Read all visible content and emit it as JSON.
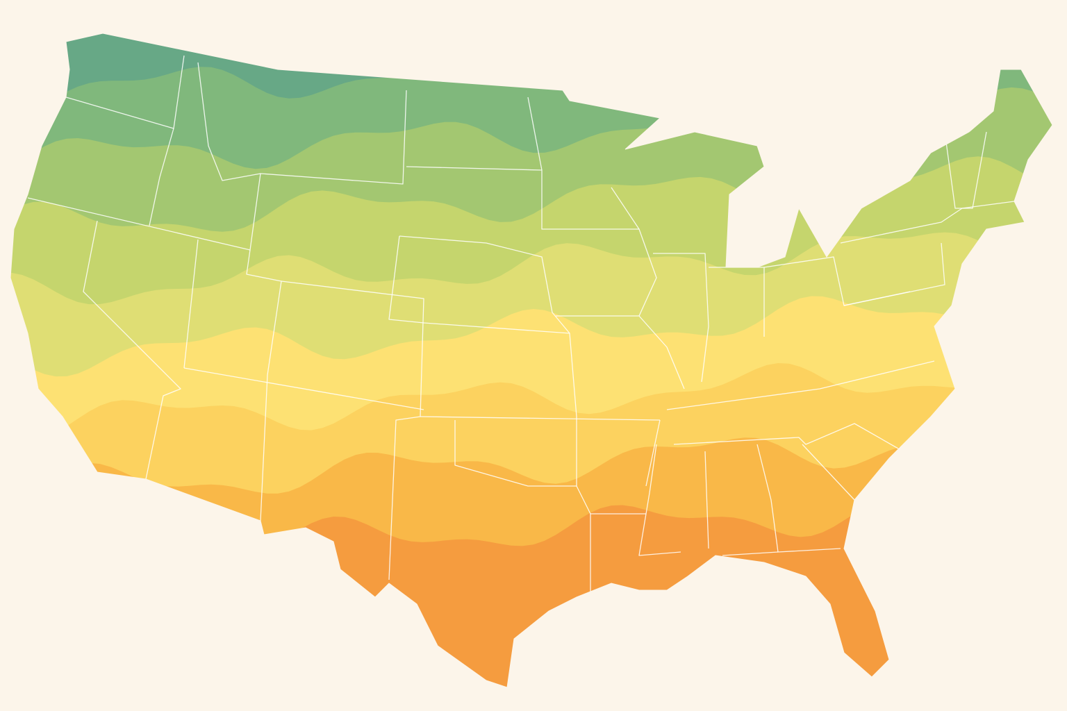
{
  "map": {
    "zones": [
      {
        "color": "#67a886"
      },
      {
        "color": "#80b87c"
      },
      {
        "color": "#a3c771"
      },
      {
        "color": "#c5d56d"
      },
      {
        "color": "#dfde74"
      },
      {
        "color": "#fde173"
      },
      {
        "color": "#fcd25f"
      },
      {
        "color": "#f9b848"
      },
      {
        "color": "#f59c3f"
      }
    ]
  }
}
